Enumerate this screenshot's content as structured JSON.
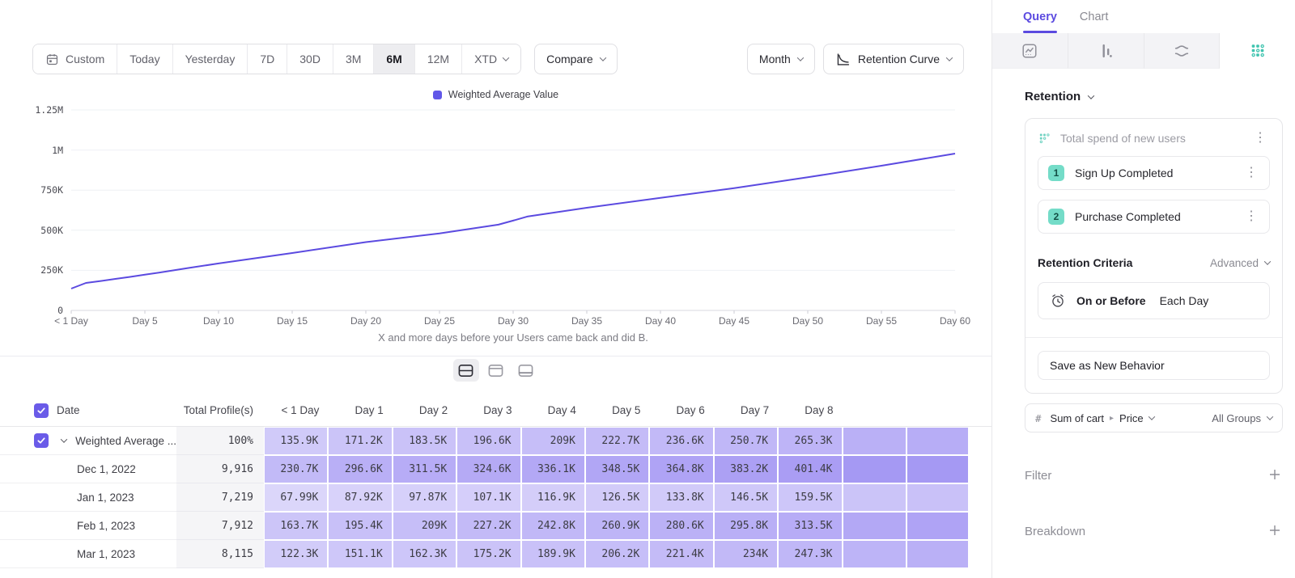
{
  "colors": {
    "accent_purple": "#5b4ae0",
    "accent_teal": "#3fc4af",
    "cell_purple_rgb": "123,104,238"
  },
  "toolbar": {
    "ranges": [
      "Custom",
      "Today",
      "Yesterday",
      "7D",
      "30D",
      "3M",
      "6M",
      "12M",
      "XTD"
    ],
    "active_range": "6M",
    "compare_label": "Compare",
    "granularity_label": "Month",
    "chart_type_label": "Retention Curve"
  },
  "chart_data": {
    "type": "line",
    "series": [
      {
        "name": "Weighted Average Value",
        "color": "#5b4ae0",
        "points": [
          [
            0,
            135900
          ],
          [
            1,
            171200
          ],
          [
            2,
            183500
          ],
          [
            3,
            196600
          ],
          [
            4,
            209000
          ],
          [
            5,
            222700
          ],
          [
            6,
            236600
          ],
          [
            7,
            250700
          ],
          [
            8,
            265300
          ],
          [
            10,
            293000
          ],
          [
            15,
            358000
          ],
          [
            20,
            426000
          ],
          [
            25,
            480000
          ],
          [
            29,
            535000
          ],
          [
            30,
            560000
          ],
          [
            31,
            586000
          ],
          [
            35,
            640000
          ],
          [
            40,
            702000
          ],
          [
            45,
            762000
          ],
          [
            50,
            830000
          ],
          [
            55,
            902000
          ],
          [
            60,
            978000
          ]
        ]
      }
    ],
    "xlim": [
      0,
      60
    ],
    "ylim": [
      0,
      1250000
    ],
    "y_ticks": [
      {
        "value": 0,
        "label": "0"
      },
      {
        "value": 250000,
        "label": "250K"
      },
      {
        "value": 500000,
        "label": "500K"
      },
      {
        "value": 750000,
        "label": "750K"
      },
      {
        "value": 1000000,
        "label": "1M"
      },
      {
        "value": 1250000,
        "label": "1.25M"
      }
    ],
    "x_ticks": [
      {
        "pos": 0,
        "label": "< 1 Day"
      },
      {
        "pos": 5,
        "label": "Day 5"
      },
      {
        "pos": 10,
        "label": "Day 10"
      },
      {
        "pos": 15,
        "label": "Day 15"
      },
      {
        "pos": 20,
        "label": "Day 20"
      },
      {
        "pos": 25,
        "label": "Day 25"
      },
      {
        "pos": 30,
        "label": "Day 30"
      },
      {
        "pos": 35,
        "label": "Day 35"
      },
      {
        "pos": 40,
        "label": "Day 40"
      },
      {
        "pos": 45,
        "label": "Day 45"
      },
      {
        "pos": 50,
        "label": "Day 50"
      },
      {
        "pos": 55,
        "label": "Day 55"
      },
      {
        "pos": 60,
        "label": "Day 60"
      }
    ],
    "x_caption": "X and more days before your Users came back and did B.",
    "grid": "horizontal",
    "legend_position": "top-center"
  },
  "view_toggle": {
    "options": [
      "split-view",
      "chart-only",
      "table-only"
    ],
    "active": "split-view"
  },
  "table": {
    "header": {
      "date": "Date",
      "total": "Total Profile(s)",
      "days": [
        "< 1 Day",
        "Day 1",
        "Day 2",
        "Day 3",
        "Day 4",
        "Day 5",
        "Day 6",
        "Day 7",
        "Day 8"
      ]
    },
    "rows": [
      {
        "label": "Weighted Average ...",
        "checked": true,
        "expandable": true,
        "total": "100%",
        "values": [
          "135.9K",
          "171.2K",
          "183.5K",
          "196.6K",
          "209K",
          "222.7K",
          "236.6K",
          "250.7K",
          "265.3K"
        ]
      },
      {
        "label": "Dec 1, 2022",
        "checked": false,
        "expandable": false,
        "total": "9,916",
        "values": [
          "230.7K",
          "296.6K",
          "311.5K",
          "324.6K",
          "336.1K",
          "348.5K",
          "364.8K",
          "383.2K",
          "401.4K"
        ]
      },
      {
        "label": "Jan 1, 2023",
        "checked": false,
        "expandable": false,
        "total": "7,219",
        "values": [
          "67.99K",
          "87.92K",
          "97.87K",
          "107.1K",
          "116.9K",
          "126.5K",
          "133.8K",
          "146.5K",
          "159.5K"
        ]
      },
      {
        "label": "Feb 1, 2023",
        "checked": false,
        "expandable": false,
        "total": "7,912",
        "values": [
          "163.7K",
          "195.4K",
          "209K",
          "227.2K",
          "242.8K",
          "260.9K",
          "280.6K",
          "295.8K",
          "313.5K"
        ]
      },
      {
        "label": "Mar 1, 2023",
        "checked": false,
        "expandable": false,
        "total": "8,115",
        "values": [
          "122.3K",
          "151.1K",
          "162.3K",
          "175.2K",
          "189.9K",
          "206.2K",
          "221.4K",
          "234K",
          "247.3K"
        ]
      }
    ]
  },
  "sidebar": {
    "tabs": [
      {
        "label": "Query",
        "active": true
      },
      {
        "label": "Chart",
        "active": false
      }
    ],
    "report_types": [
      "insights",
      "funnels",
      "flows",
      "retention"
    ],
    "active_report_type": "retention",
    "section_title": "Retention",
    "behavior": {
      "title": "Total spend of new users",
      "steps": [
        {
          "index": "1",
          "label": "Sign Up Completed"
        },
        {
          "index": "2",
          "label": "Purchase Completed"
        }
      ]
    },
    "criteria": {
      "label": "Retention Criteria",
      "mode_label": "Advanced",
      "timing_operator": "On or Before",
      "timing_value": "Each Day"
    },
    "save_button_label": "Save as New Behavior",
    "measure": {
      "prefix": "#",
      "property": "Sum of cart",
      "sub_property": "Price",
      "groups_label": "All Groups"
    },
    "filter_label": "Filter",
    "breakdown_label": "Breakdown"
  }
}
